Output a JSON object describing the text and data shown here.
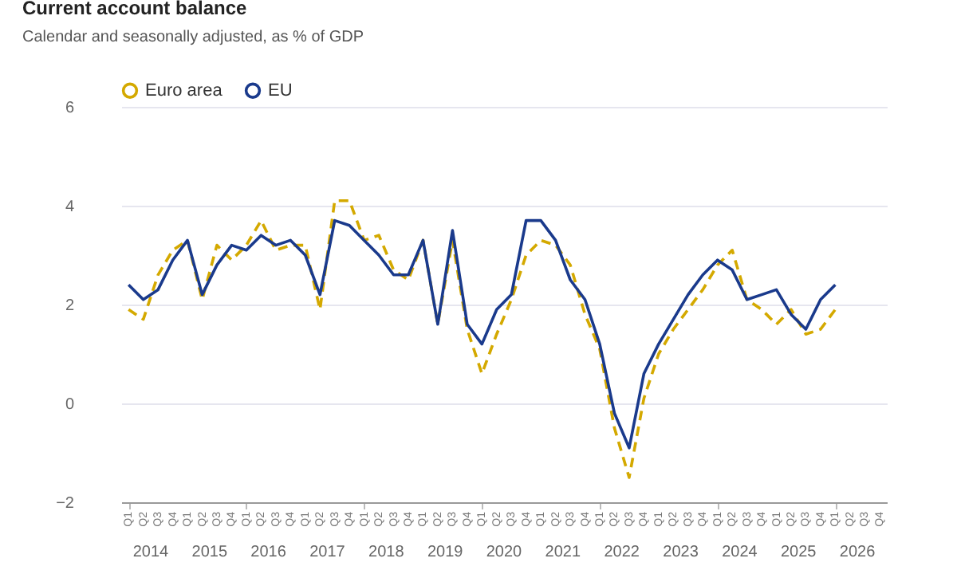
{
  "chart_data": {
    "type": "line",
    "title": "Current account balance",
    "subtitle": "Calendar and seasonally adjusted, as % of GDP",
    "categories": [
      "Q1",
      "Q2",
      "Q3",
      "Q4",
      "Q1",
      "Q2",
      "Q3",
      "Q4",
      "Q1",
      "Q2",
      "Q3",
      "Q4",
      "Q1",
      "Q2",
      "Q3",
      "Q4",
      "Q1",
      "Q2",
      "Q3",
      "Q4",
      "Q1",
      "Q2",
      "Q3",
      "Q4",
      "Q1",
      "Q2",
      "Q3",
      "Q4",
      "Q1",
      "Q2",
      "Q3",
      "Q4",
      "Q1",
      "Q2",
      "Q3",
      "Q4",
      "Q1",
      "Q2",
      "Q3",
      "Q4",
      "Q1",
      "Q2",
      "Q3",
      "Q4",
      "Q1",
      "Q2",
      "Q3",
      "Q4",
      "Q1",
      "Q2",
      "Q3",
      "Q4"
    ],
    "annotations": [
      "2014",
      "2015",
      "2016",
      "2017",
      "2018",
      "2019",
      "2020",
      "2021",
      "2022",
      "2023",
      "2024",
      "2025",
      "2026"
    ],
    "series": [
      {
        "name": "Euro area",
        "color": "#d4a900",
        "line_style": "dashed",
        "values": [
          1.9,
          1.7,
          2.6,
          3.1,
          3.3,
          2.1,
          3.2,
          2.9,
          3.2,
          3.7,
          3.1,
          3.2,
          3.2,
          1.9,
          4.1,
          4.1,
          3.3,
          3.4,
          2.7,
          2.5,
          3.3,
          1.6,
          3.3,
          1.5,
          0.6,
          1.4,
          2.1,
          3.0,
          3.3,
          3.2,
          2.8,
          1.8,
          1.1,
          -0.5,
          -1.5,
          0.1,
          1.0,
          1.5,
          1.9,
          2.3,
          2.8,
          3.1,
          2.1,
          1.9,
          1.6,
          1.9,
          1.4,
          1.5,
          1.9,
          null,
          null,
          null
        ]
      },
      {
        "name": "EU",
        "color": "#1a3a8c",
        "line_style": "solid",
        "values": [
          2.4,
          2.1,
          2.3,
          2.9,
          3.3,
          2.2,
          2.8,
          3.2,
          3.1,
          3.4,
          3.2,
          3.3,
          3.0,
          2.2,
          3.7,
          3.6,
          3.3,
          3.0,
          2.6,
          2.6,
          3.3,
          1.6,
          3.5,
          1.6,
          1.2,
          1.9,
          2.2,
          3.7,
          3.7,
          3.3,
          2.5,
          2.1,
          1.2,
          -0.2,
          -0.9,
          0.6,
          1.2,
          1.7,
          2.2,
          2.6,
          2.9,
          2.7,
          2.1,
          2.2,
          2.3,
          1.8,
          1.5,
          2.1,
          2.4,
          null,
          null,
          null
        ]
      }
    ],
    "ylim": [
      -2,
      6
    ],
    "yticks": [
      -2,
      0,
      2,
      4,
      6
    ],
    "grid": "y",
    "legend": "top",
    "marker": "none"
  }
}
